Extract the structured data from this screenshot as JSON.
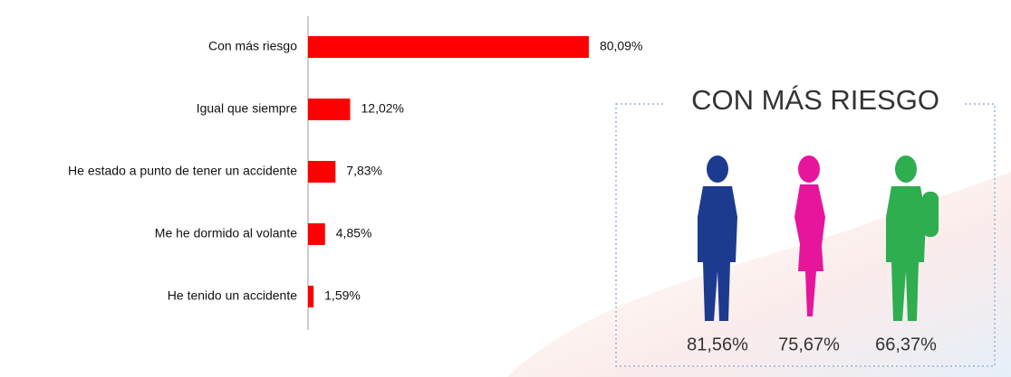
{
  "chart_data": [
    {
      "type": "hbar",
      "categories": [
        "Con más riesgo",
        "Igual que siempre",
        "He estado a punto de tener un accidente",
        "Me he dormido al volante",
        "He tenido un accidente"
      ],
      "values": [
        80.09,
        12.02,
        7.83,
        4.85,
        1.59
      ],
      "value_labels": [
        "80,09%",
        "12,02%",
        "7,83%",
        "4,85%",
        "1,59%"
      ],
      "color": "#ff0000"
    },
    {
      "type": "pictogram",
      "title": "CON MÁS RIESGO",
      "values": [
        81.56,
        75.67,
        66.37
      ],
      "value_labels": [
        "81,56%",
        "75,67%",
        "66,37%"
      ],
      "colors": [
        "#1c3b8f",
        "#e5169b",
        "#2eae4f"
      ]
    }
  ]
}
